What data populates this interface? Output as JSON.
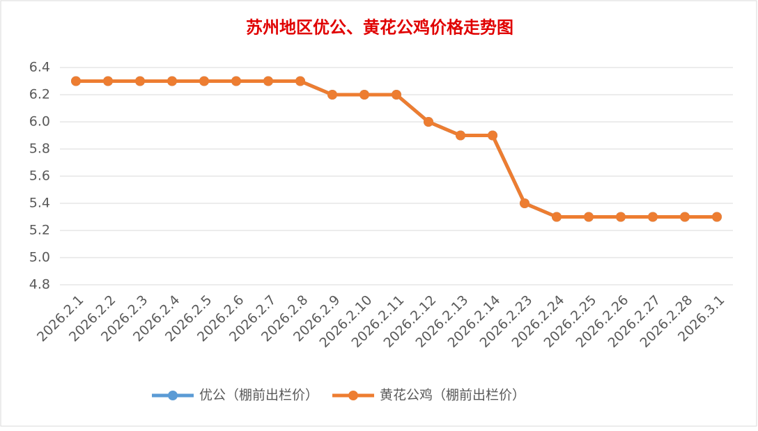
{
  "chart_data": {
    "type": "line",
    "title": "苏州地区优公、黄花公鸡价格走势图",
    "categories": [
      "2026.2.1",
      "2026.2.2",
      "2026.2.3",
      "2026.2.4",
      "2026.2.5",
      "2026.2.6",
      "2026.2.7",
      "2026.2.8",
      "2026.2.9",
      "2026.2.10",
      "2026.2.11",
      "2026.2.12",
      "2026.2.13",
      "2026.2.14",
      "2026.2.23",
      "2026.2.24",
      "2026.2.25",
      "2026.2.26",
      "2026.2.27",
      "2026.2.28",
      "2026.3.1"
    ],
    "series": [
      {
        "name": "优公（棚前出栏价）",
        "color": "#5b9bd5",
        "values": [
          6.3,
          6.3,
          6.3,
          6.3,
          6.3,
          6.3,
          6.3,
          6.3,
          6.2,
          6.2,
          6.2,
          6.0,
          5.9,
          5.9,
          5.4,
          5.3,
          5.3,
          5.3,
          5.3,
          5.3,
          5.3
        ]
      },
      {
        "name": "黄花公鸡（棚前出栏价）",
        "color": "#ed7d31",
        "values": [
          6.3,
          6.3,
          6.3,
          6.3,
          6.3,
          6.3,
          6.3,
          6.3,
          6.2,
          6.2,
          6.2,
          6.0,
          5.9,
          5.9,
          5.4,
          5.3,
          5.3,
          5.3,
          5.3,
          5.3,
          5.3
        ]
      }
    ],
    "ylim": [
      4.8,
      6.4
    ],
    "yticks": [
      4.8,
      {
        "value": 5.0,
        "label": "5.0"
      },
      5.2,
      5.4,
      5.6,
      5.8,
      {
        "value": 6.0,
        "label": "6.0"
      },
      6.2,
      6.4
    ],
    "grid": true,
    "legend": "bottom"
  }
}
